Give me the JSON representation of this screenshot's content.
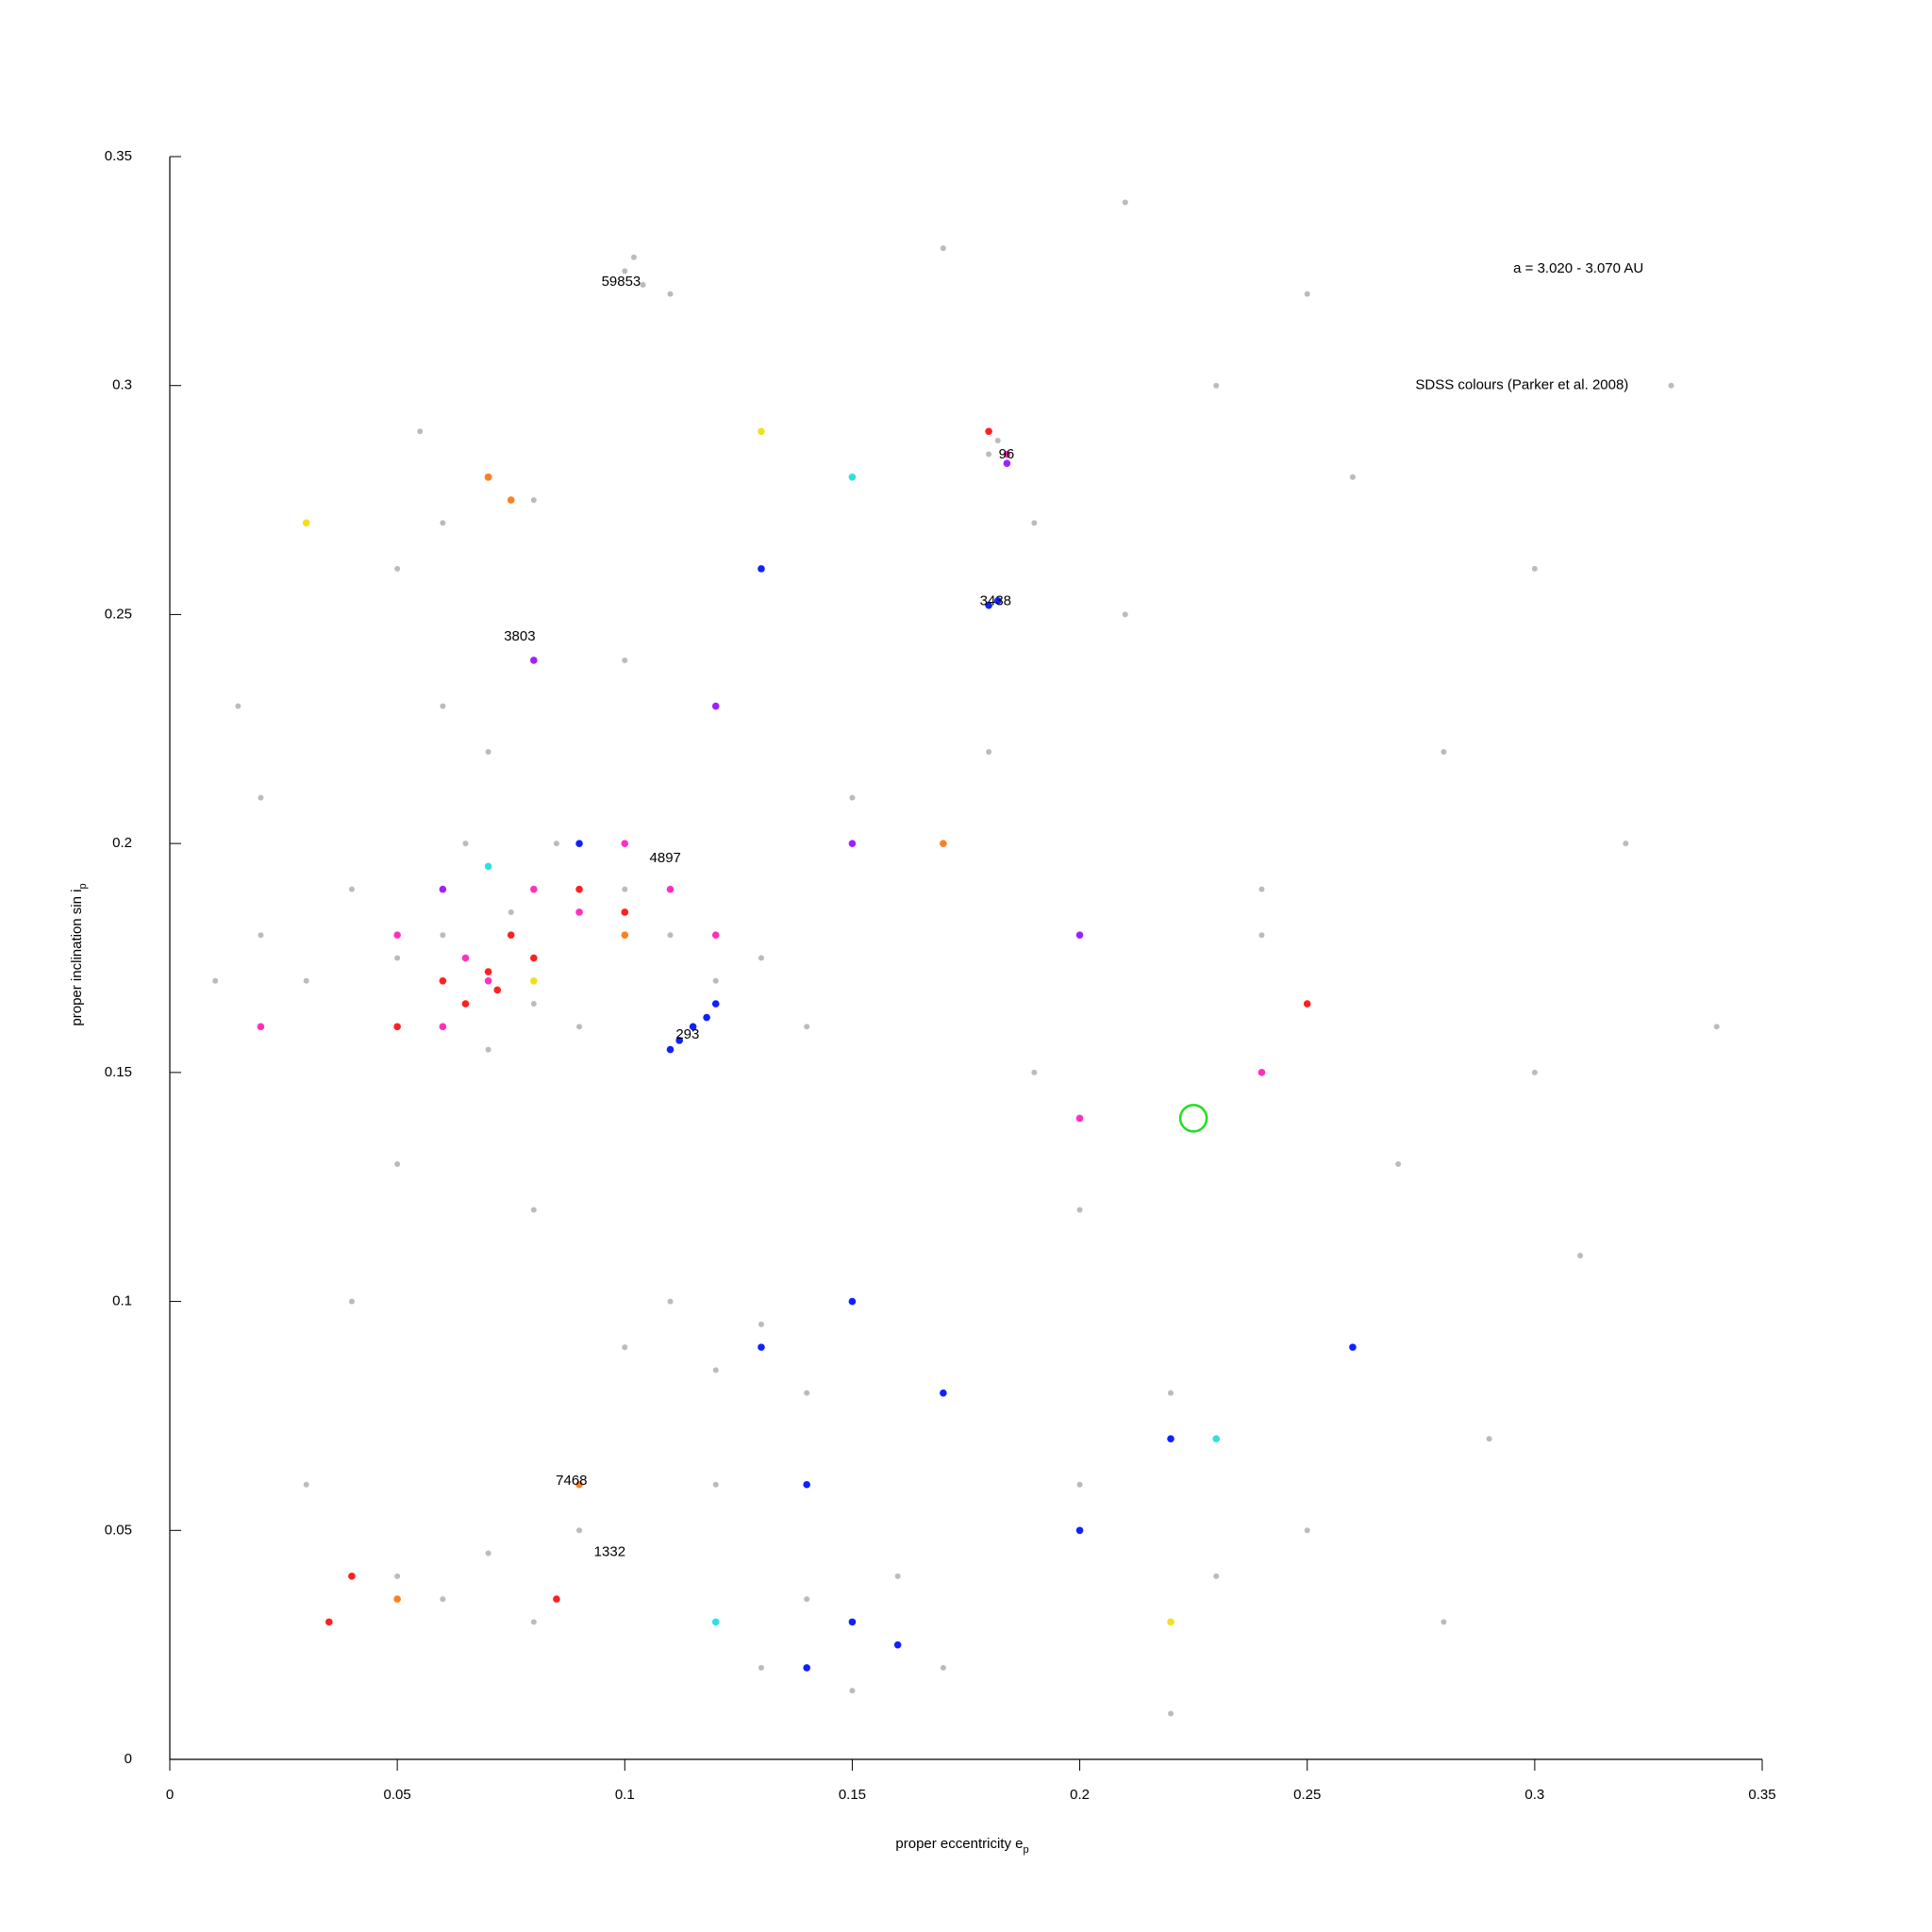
{
  "chart_data": {
    "type": "scatter",
    "xlabel": {
      "text": "proper eccentricity e",
      "sub": "p"
    },
    "ylabel": {
      "text": "proper inclination sin i",
      "sub": "p"
    },
    "xlim": [
      0,
      0.35
    ],
    "ylim": [
      0,
      0.35
    ],
    "xticks": [
      0,
      0.05,
      0.1,
      0.15,
      0.2,
      0.25,
      0.3,
      0.35
    ],
    "yticks": [
      0,
      0.05,
      0.1,
      0.15,
      0.2,
      0.25,
      0.3,
      0.35
    ],
    "annotations": [
      {
        "text": "a = 3.020 - 3.070 AU",
        "x": 0.3096,
        "y": 0.3255
      },
      {
        "text": "SDSS colours (Parker et al. 2008)",
        "x": 0.2972,
        "y": 0.3
      },
      {
        "text": "59853",
        "x": 0.0992,
        "y": 0.3226
      },
      {
        "text": "96",
        "x": 0.1839,
        "y": 0.2849
      },
      {
        "text": "3438",
        "x": 0.1815,
        "y": 0.2529
      },
      {
        "text": "3803",
        "x": 0.0769,
        "y": 0.2451
      },
      {
        "text": "4897",
        "x": 0.1089,
        "y": 0.1967
      },
      {
        "text": "293",
        "x": 0.1138,
        "y": 0.1582
      },
      {
        "text": "7468",
        "x": 0.0883,
        "y": 0.0608
      },
      {
        "text": "1332",
        "x": 0.0967,
        "y": 0.0452
      }
    ],
    "highlight": {
      "x": 0.225,
      "y": 0.14,
      "color": "#22dd22"
    },
    "series": [
      {
        "color": "#bbbbbb",
        "x": [
          0.02,
          0.03,
          0.04,
          0.05,
          0.06,
          0.07,
          0.08,
          0.09,
          0.1,
          0.11,
          0.12,
          0.13,
          0.14,
          0.05,
          0.06,
          0.065,
          0.07,
          0.075,
          0.08,
          0.085,
          0.09,
          0.06,
          0.07,
          0.08,
          0.05,
          0.055,
          0.1,
          0.11,
          0.12,
          0.13,
          0.14,
          0.15,
          0.16,
          0.17,
          0.13,
          0.14,
          0.15,
          0.16,
          0.12,
          0.18,
          0.19,
          0.2,
          0.21,
          0.22,
          0.23,
          0.24,
          0.25,
          0.26,
          0.27,
          0.28,
          0.29,
          0.3,
          0.31,
          0.32,
          0.33,
          0.34,
          0.05,
          0.06,
          0.07,
          0.08,
          0.09,
          0.1,
          0.11,
          0.03,
          0.04,
          0.05,
          0.1,
          0.102,
          0.104,
          0.18,
          0.182,
          0.06,
          0.07,
          0.08,
          0.02,
          0.01,
          0.015,
          0.2,
          0.22,
          0.24,
          0.26,
          0.28,
          0.3,
          0.17,
          0.19,
          0.21,
          0.23,
          0.25,
          0.15,
          0.12
        ],
        "values": [
          0.18,
          0.17,
          0.19,
          0.175,
          0.18,
          0.17,
          0.165,
          0.185,
          0.19,
          0.18,
          0.17,
          0.175,
          0.16,
          0.16,
          0.19,
          0.2,
          0.155,
          0.185,
          0.175,
          0.2,
          0.16,
          0.27,
          0.28,
          0.275,
          0.26,
          0.29,
          0.09,
          0.1,
          0.085,
          0.095,
          0.08,
          0.03,
          0.025,
          0.02,
          0.02,
          0.035,
          0.015,
          0.04,
          0.03,
          0.22,
          0.15,
          0.12,
          0.25,
          0.08,
          0.3,
          0.18,
          0.05,
          0.28,
          0.13,
          0.22,
          0.07,
          0.26,
          0.11,
          0.2,
          0.3,
          0.16,
          0.04,
          0.035,
          0.045,
          0.03,
          0.05,
          0.24,
          0.32,
          0.06,
          0.1,
          0.13,
          0.325,
          0.328,
          0.322,
          0.285,
          0.288,
          0.23,
          0.22,
          0.12,
          0.21,
          0.17,
          0.23,
          0.06,
          0.01,
          0.19,
          0.09,
          0.03,
          0.15,
          0.33,
          0.27,
          0.34,
          0.04,
          0.32,
          0.21,
          0.06
        ]
      },
      {
        "color": "#ff2020",
        "x": [
          0.06,
          0.065,
          0.07,
          0.072,
          0.075,
          0.08,
          0.05,
          0.09,
          0.1,
          0.04,
          0.035,
          0.085,
          0.18,
          0.25,
          0.07
        ],
        "values": [
          0.17,
          0.165,
          0.172,
          0.168,
          0.18,
          0.175,
          0.16,
          0.19,
          0.185,
          0.04,
          0.03,
          0.035,
          0.29,
          0.165,
          0.28
        ]
      },
      {
        "color": "#ff30c0",
        "x": [
          0.065,
          0.07,
          0.08,
          0.09,
          0.1,
          0.11,
          0.05,
          0.06,
          0.12,
          0.2,
          0.24,
          0.02,
          0.184
        ],
        "values": [
          0.175,
          0.17,
          0.19,
          0.185,
          0.2,
          0.19,
          0.18,
          0.16,
          0.18,
          0.14,
          0.15,
          0.16,
          0.285
        ]
      },
      {
        "color": "#1020ff",
        "x": [
          0.11,
          0.112,
          0.115,
          0.118,
          0.12,
          0.14,
          0.15,
          0.16,
          0.13,
          0.17,
          0.15,
          0.14,
          0.18,
          0.182,
          0.2,
          0.22,
          0.26,
          0.13,
          0.09
        ],
        "values": [
          0.155,
          0.157,
          0.16,
          0.162,
          0.165,
          0.02,
          0.03,
          0.025,
          0.09,
          0.08,
          0.1,
          0.06,
          0.252,
          0.253,
          0.05,
          0.07,
          0.09,
          0.26,
          0.2
        ]
      },
      {
        "color": "#a020ff",
        "x": [
          0.08,
          0.15,
          0.2,
          0.12,
          0.06,
          0.184
        ],
        "values": [
          0.24,
          0.2,
          0.18,
          0.23,
          0.19,
          0.283
        ]
      },
      {
        "color": "#ff8020",
        "x": [
          0.07,
          0.075,
          0.09,
          0.1,
          0.05,
          0.17
        ],
        "values": [
          0.28,
          0.275,
          0.06,
          0.18,
          0.035,
          0.2
        ]
      },
      {
        "color": "#f0e020",
        "x": [
          0.08,
          0.13,
          0.22,
          0.03
        ],
        "values": [
          0.17,
          0.29,
          0.03,
          0.27
        ]
      },
      {
        "color": "#30e0e0",
        "x": [
          0.07,
          0.15,
          0.23,
          0.12
        ],
        "values": [
          0.195,
          0.28,
          0.07,
          0.03
        ]
      }
    ]
  }
}
